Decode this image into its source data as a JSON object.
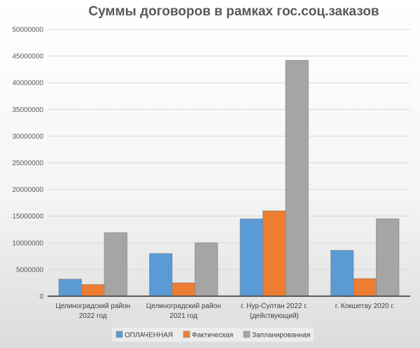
{
  "chart_data": {
    "type": "bar",
    "title": "Суммы договоров в рамках гос.соц.заказов",
    "categories": [
      [
        "Целиноградский район",
        "2022 год"
      ],
      [
        "Целиноградский район",
        "2021 год"
      ],
      [
        "г. Нур-Султан 2022 г.",
        "(действующий)"
      ],
      [
        "г. Кокшетау 2020 г."
      ]
    ],
    "series": [
      {
        "name": "ОПЛАЧЕННАЯ",
        "color": "#5b9bd5",
        "values": [
          3200000,
          8000000,
          14500000,
          8600000
        ]
      },
      {
        "name": "Фактическая",
        "color": "#ed7d31",
        "values": [
          2200000,
          2500000,
          16000000,
          3300000
        ]
      },
      {
        "name": "Запланированная",
        "color": "#a5a5a5",
        "values": [
          11900000,
          10000000,
          44200000,
          14500000
        ]
      }
    ],
    "yticks": [
      "0",
      "5000000",
      "10000000",
      "15000000",
      "20000000",
      "25000000",
      "30000000",
      "35000000",
      "40000000",
      "45000000",
      "50000000"
    ],
    "ylim": [
      0,
      50000000
    ],
    "grid": true,
    "legend_position": "bottom"
  }
}
